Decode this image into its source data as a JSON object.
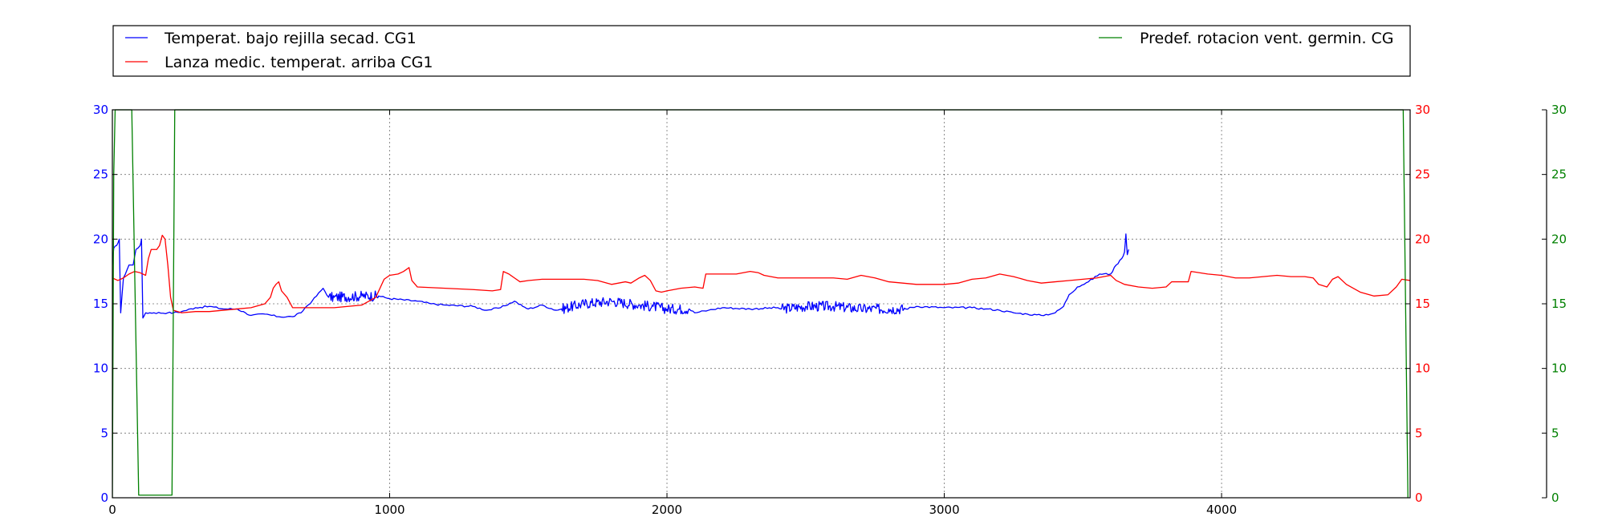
{
  "chart_data": {
    "type": "line",
    "title": "",
    "xlabel": "",
    "ylabel": "",
    "xlim": [
      0,
      4680
    ],
    "grid": true,
    "legend_position": "top",
    "x_ticks": [
      "0",
      "1000",
      "2000",
      "3000",
      "4000"
    ],
    "x_tick_values": [
      0,
      1000,
      2000,
      3000,
      4000
    ],
    "axes": [
      {
        "name": "left",
        "color": "#0000ff",
        "ylim": [
          0,
          30
        ],
        "ticks": [
          "0",
          "5",
          "10",
          "15",
          "20",
          "25",
          "30"
        ]
      },
      {
        "name": "right",
        "color": "#ff0000",
        "ylim": [
          0,
          30
        ],
        "ticks": [
          "0",
          "5",
          "10",
          "15",
          "20",
          "25",
          "30"
        ]
      },
      {
        "name": "far-right",
        "color": "#008000",
        "ylim": [
          0,
          30
        ],
        "ticks": [
          "0",
          "5",
          "10",
          "15",
          "20",
          "25",
          "30"
        ]
      }
    ],
    "series": [
      {
        "name": "Temperat. bajo rejilla secad. CG1",
        "color": "#0000ff",
        "axis": "left",
        "noisy_ranges": [
          [
            780,
            960
          ],
          [
            1620,
            2080
          ],
          [
            2410,
            2860
          ]
        ],
        "points": [
          [
            0,
            18
          ],
          [
            5,
            19.3
          ],
          [
            15,
            19.5
          ],
          [
            25,
            20
          ],
          [
            30,
            14.3
          ],
          [
            40,
            17
          ],
          [
            60,
            18
          ],
          [
            75,
            18
          ],
          [
            85,
            19.2
          ],
          [
            100,
            19.5
          ],
          [
            105,
            20
          ],
          [
            110,
            13.9
          ],
          [
            120,
            14.3
          ],
          [
            150,
            14.3
          ],
          [
            200,
            14.3
          ],
          [
            220,
            14.3
          ],
          [
            250,
            14.4
          ],
          [
            300,
            14.7
          ],
          [
            350,
            14.8
          ],
          [
            400,
            14.6
          ],
          [
            450,
            14.6
          ],
          [
            480,
            14.3
          ],
          [
            500,
            14.1
          ],
          [
            550,
            14.2
          ],
          [
            600,
            14.0
          ],
          [
            650,
            14.0
          ],
          [
            680,
            14.3
          ],
          [
            700,
            14.8
          ],
          [
            720,
            15.2
          ],
          [
            760,
            16.2
          ],
          [
            780,
            15.5
          ],
          [
            800,
            15.5
          ],
          [
            900,
            15.6
          ],
          [
            960,
            15.6
          ],
          [
            1000,
            15.4
          ],
          [
            1100,
            15.2
          ],
          [
            1150,
            15.0
          ],
          [
            1200,
            14.9
          ],
          [
            1300,
            14.8
          ],
          [
            1350,
            14.5
          ],
          [
            1400,
            14.7
          ],
          [
            1450,
            15.2
          ],
          [
            1480,
            14.8
          ],
          [
            1500,
            14.6
          ],
          [
            1550,
            14.9
          ],
          [
            1600,
            14.5
          ],
          [
            1620,
            14.6
          ],
          [
            1700,
            15.0
          ],
          [
            1800,
            15.2
          ],
          [
            1900,
            14.9
          ],
          [
            1950,
            14.8
          ],
          [
            2000,
            14.6
          ],
          [
            2080,
            14.6
          ],
          [
            2100,
            14.3
          ],
          [
            2150,
            14.5
          ],
          [
            2200,
            14.7
          ],
          [
            2300,
            14.6
          ],
          [
            2400,
            14.7
          ],
          [
            2410,
            14.6
          ],
          [
            2500,
            14.8
          ],
          [
            2600,
            14.8
          ],
          [
            2700,
            14.6
          ],
          [
            2800,
            14.6
          ],
          [
            2860,
            14.6
          ],
          [
            2900,
            14.8
          ],
          [
            3000,
            14.7
          ],
          [
            3100,
            14.7
          ],
          [
            3150,
            14.6
          ],
          [
            3200,
            14.5
          ],
          [
            3250,
            14.3
          ],
          [
            3300,
            14.2
          ],
          [
            3350,
            14.1
          ],
          [
            3400,
            14.3
          ],
          [
            3430,
            14.8
          ],
          [
            3450,
            15.7
          ],
          [
            3480,
            16.3
          ],
          [
            3520,
            16.7
          ],
          [
            3560,
            17.3
          ],
          [
            3600,
            17.3
          ],
          [
            3620,
            18.0
          ],
          [
            3640,
            18.5
          ],
          [
            3650,
            19.0
          ],
          [
            3655,
            20.4
          ],
          [
            3660,
            18.8
          ],
          [
            3665,
            19.2
          ]
        ]
      },
      {
        "name": "Lanza medic. temperat. arriba CG1",
        "color": "#ff0000",
        "axis": "right",
        "noisy_ranges": [],
        "points": [
          [
            0,
            17.0
          ],
          [
            20,
            16.8
          ],
          [
            40,
            17.0
          ],
          [
            60,
            17.3
          ],
          [
            80,
            17.5
          ],
          [
            100,
            17.4
          ],
          [
            120,
            17.2
          ],
          [
            130,
            18.5
          ],
          [
            140,
            19.2
          ],
          [
            160,
            19.2
          ],
          [
            170,
            19.5
          ],
          [
            180,
            20.3
          ],
          [
            190,
            20.0
          ],
          [
            200,
            18.0
          ],
          [
            210,
            15.5
          ],
          [
            220,
            14.5
          ],
          [
            250,
            14.3
          ],
          [
            300,
            14.4
          ],
          [
            350,
            14.4
          ],
          [
            400,
            14.5
          ],
          [
            450,
            14.6
          ],
          [
            500,
            14.7
          ],
          [
            550,
            15.0
          ],
          [
            570,
            15.5
          ],
          [
            580,
            16.2
          ],
          [
            590,
            16.5
          ],
          [
            600,
            16.7
          ],
          [
            610,
            16.0
          ],
          [
            630,
            15.5
          ],
          [
            650,
            14.7
          ],
          [
            700,
            14.7
          ],
          [
            800,
            14.7
          ],
          [
            900,
            14.9
          ],
          [
            950,
            15.5
          ],
          [
            980,
            16.9
          ],
          [
            1000,
            17.2
          ],
          [
            1030,
            17.3
          ],
          [
            1050,
            17.5
          ],
          [
            1070,
            17.8
          ],
          [
            1080,
            16.8
          ],
          [
            1100,
            16.3
          ],
          [
            1200,
            16.2
          ],
          [
            1300,
            16.1
          ],
          [
            1370,
            16.0
          ],
          [
            1400,
            16.1
          ],
          [
            1410,
            17.5
          ],
          [
            1430,
            17.3
          ],
          [
            1450,
            17.0
          ],
          [
            1470,
            16.7
          ],
          [
            1500,
            16.8
          ],
          [
            1550,
            16.9
          ],
          [
            1600,
            16.9
          ],
          [
            1650,
            16.9
          ],
          [
            1700,
            16.9
          ],
          [
            1750,
            16.8
          ],
          [
            1800,
            16.5
          ],
          [
            1850,
            16.7
          ],
          [
            1870,
            16.6
          ],
          [
            1900,
            17.0
          ],
          [
            1920,
            17.2
          ],
          [
            1940,
            16.8
          ],
          [
            1960,
            16.0
          ],
          [
            1980,
            15.9
          ],
          [
            2000,
            16.0
          ],
          [
            2050,
            16.2
          ],
          [
            2100,
            16.3
          ],
          [
            2130,
            16.2
          ],
          [
            2140,
            17.3
          ],
          [
            2200,
            17.3
          ],
          [
            2250,
            17.3
          ],
          [
            2300,
            17.5
          ],
          [
            2330,
            17.4
          ],
          [
            2350,
            17.2
          ],
          [
            2400,
            17.0
          ],
          [
            2500,
            17.0
          ],
          [
            2600,
            17.0
          ],
          [
            2650,
            16.9
          ],
          [
            2700,
            17.2
          ],
          [
            2750,
            17.0
          ],
          [
            2800,
            16.7
          ],
          [
            2900,
            16.5
          ],
          [
            3000,
            16.5
          ],
          [
            3050,
            16.6
          ],
          [
            3100,
            16.9
          ],
          [
            3150,
            17.0
          ],
          [
            3200,
            17.3
          ],
          [
            3250,
            17.1
          ],
          [
            3300,
            16.8
          ],
          [
            3350,
            16.6
          ],
          [
            3400,
            16.7
          ],
          [
            3450,
            16.8
          ],
          [
            3500,
            16.9
          ],
          [
            3550,
            17.0
          ],
          [
            3600,
            17.2
          ],
          [
            3620,
            16.8
          ],
          [
            3650,
            16.5
          ],
          [
            3700,
            16.3
          ],
          [
            3750,
            16.2
          ],
          [
            3800,
            16.3
          ],
          [
            3820,
            16.7
          ],
          [
            3880,
            16.7
          ],
          [
            3890,
            17.5
          ],
          [
            3950,
            17.3
          ],
          [
            4000,
            17.2
          ],
          [
            4050,
            17.0
          ],
          [
            4100,
            17.0
          ],
          [
            4150,
            17.1
          ],
          [
            4200,
            17.2
          ],
          [
            4250,
            17.1
          ],
          [
            4300,
            17.1
          ],
          [
            4330,
            17.0
          ],
          [
            4350,
            16.5
          ],
          [
            4380,
            16.3
          ],
          [
            4400,
            16.9
          ],
          [
            4420,
            17.1
          ],
          [
            4450,
            16.5
          ],
          [
            4500,
            15.9
          ],
          [
            4550,
            15.6
          ],
          [
            4600,
            15.7
          ],
          [
            4630,
            16.3
          ],
          [
            4650,
            16.9
          ],
          [
            4680,
            16.8
          ]
        ]
      },
      {
        "name": "Predef. rotacion vent. germin. CG",
        "color": "#008000",
        "axis": "far-right",
        "noisy_ranges": [],
        "points": [
          [
            0,
            0
          ],
          [
            5,
            25
          ],
          [
            10,
            30
          ],
          [
            70,
            30
          ],
          [
            95,
            0.2
          ],
          [
            215,
            0.2
          ],
          [
            225,
            30
          ],
          [
            4655,
            30
          ],
          [
            4672,
            0
          ]
        ]
      }
    ]
  }
}
